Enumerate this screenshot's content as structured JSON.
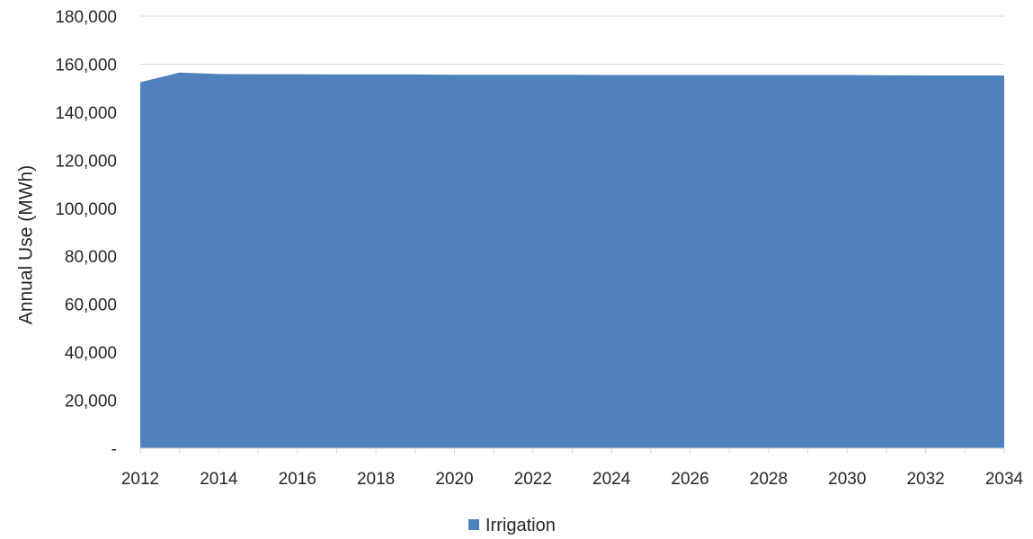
{
  "chart_data": {
    "type": "area",
    "ylabel": "Annual Use (MWh)",
    "xlabel": "",
    "x": [
      2012,
      2013,
      2014,
      2015,
      2016,
      2017,
      2018,
      2019,
      2020,
      2021,
      2022,
      2023,
      2024,
      2025,
      2026,
      2027,
      2028,
      2029,
      2030,
      2031,
      2032,
      2033,
      2034
    ],
    "x_tick_labels": [
      "2012",
      "2014",
      "2016",
      "2018",
      "2020",
      "2022",
      "2024",
      "2026",
      "2028",
      "2030",
      "2032",
      "2034"
    ],
    "y_tick_labels": [
      "-",
      "20,000",
      "40,000",
      "60,000",
      "80,000",
      "100,000",
      "120,000",
      "140,000",
      "160,000",
      "180,000"
    ],
    "ylim": [
      0,
      180000
    ],
    "xlim": [
      2012,
      2034
    ],
    "grid": "horizontal",
    "legend_position": "bottom",
    "series": [
      {
        "name": "Irrigation",
        "color": "#4f81bd",
        "values": [
          152500,
          156500,
          155900,
          155800,
          155800,
          155700,
          155700,
          155700,
          155600,
          155600,
          155600,
          155600,
          155500,
          155500,
          155500,
          155500,
          155500,
          155500,
          155500,
          155400,
          155300,
          155300,
          155300
        ]
      }
    ]
  }
}
